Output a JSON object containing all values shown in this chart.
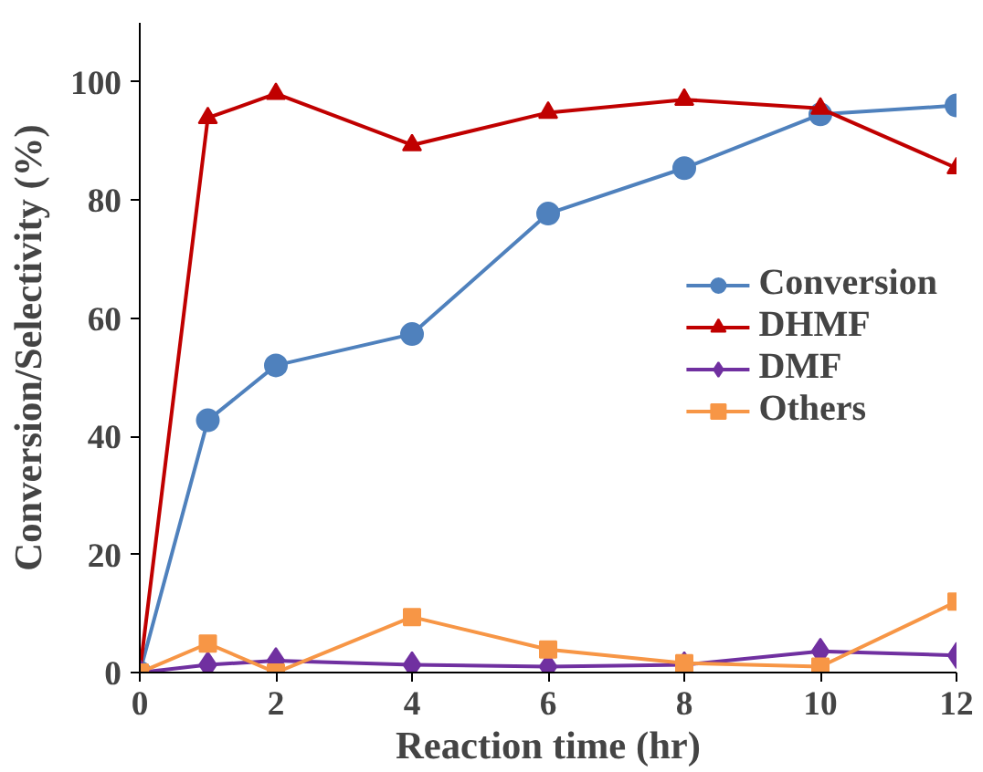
{
  "chart_data": {
    "type": "line",
    "xlabel": "Reaction time (hr)",
    "ylabel": "Conversion/Selectivity (%)",
    "x": [
      0,
      1,
      2,
      4,
      6,
      8,
      10,
      12
    ],
    "xlim": [
      0,
      12
    ],
    "xticks": [
      0,
      2,
      4,
      6,
      8,
      10,
      12
    ],
    "ylim": [
      0,
      110
    ],
    "yticks": [
      0,
      20,
      40,
      60,
      80,
      100
    ],
    "grid": false,
    "legend": "right",
    "series": [
      {
        "name": "Conversion",
        "color": "#4f81bd",
        "marker": "circle",
        "values": [
          0,
          42.7,
          52,
          57.3,
          77.7,
          85.4,
          94.5,
          96
        ]
      },
      {
        "name": "DHMF",
        "color": "#c00000",
        "marker": "triangle",
        "values": [
          0,
          93.9,
          98,
          89.3,
          94.8,
          97,
          95.5,
          85.4
        ]
      },
      {
        "name": "DMF",
        "color": "#7030a0",
        "marker": "diamond",
        "values": [
          0,
          1.3,
          2,
          1.3,
          1,
          1.3,
          3.6,
          2.9
        ]
      },
      {
        "name": "Others",
        "color": "#f79646",
        "marker": "square",
        "values": [
          0,
          4.9,
          0,
          9.4,
          3.9,
          1.6,
          1,
          12
        ]
      }
    ]
  }
}
